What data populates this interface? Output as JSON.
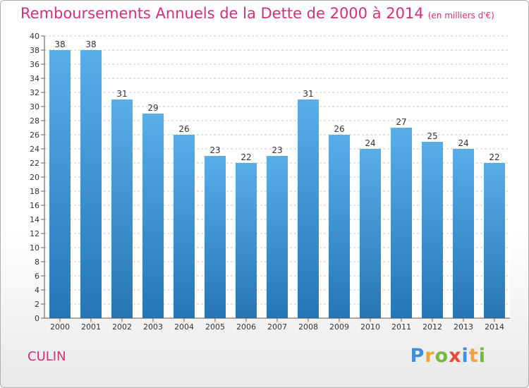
{
  "header": {
    "title": "Remboursements Annuels de la Dette de 2000 à 2014",
    "unit": "(en milliers d'€)"
  },
  "footer": {
    "commune": "CULIN",
    "brand_letters": [
      "P",
      "r",
      "o",
      "x",
      "i",
      "t",
      "i"
    ]
  },
  "colors": {
    "title": "#d0307a",
    "bar_top": "#5aaee8",
    "bar_bottom": "#2676b6",
    "grid": "#c8c8c8"
  },
  "chart_data": {
    "type": "bar",
    "title": "Remboursements Annuels de la Dette de 2000 à 2014",
    "subtitle": "(en milliers d'€)",
    "categories": [
      "2000",
      "2001",
      "2002",
      "2003",
      "2004",
      "2005",
      "2006",
      "2007",
      "2008",
      "2009",
      "2010",
      "2011",
      "2012",
      "2013",
      "2014"
    ],
    "values": [
      38,
      38,
      31,
      29,
      26,
      23,
      22,
      23,
      31,
      26,
      24,
      27,
      25,
      24,
      22
    ],
    "ylim": [
      0,
      40
    ],
    "ytick_step": 2,
    "grid": true,
    "data_labels": true
  }
}
